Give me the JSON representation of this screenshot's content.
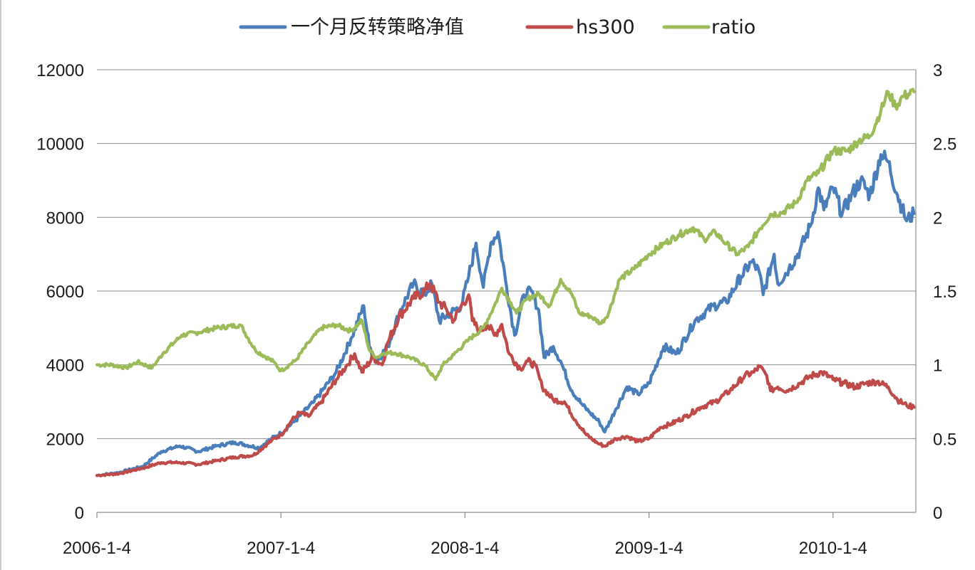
{
  "chart_data": {
    "type": "line",
    "title": "",
    "xlabel": "",
    "ylabel": "",
    "legend_position": "top",
    "grid": "horizontal",
    "x_tick_labels": [
      "2006-1-4",
      "2007-1-4",
      "2008-1-4",
      "2009-1-4",
      "2010-1-4"
    ],
    "y_left": {
      "ylim": [
        0,
        12000
      ],
      "ticks": [
        "0",
        "2000",
        "4000",
        "6000",
        "8000",
        "10000",
        "12000"
      ]
    },
    "y_right": {
      "ylim": [
        0,
        3
      ],
      "ticks": [
        "0",
        "0.5",
        "1",
        "1.5",
        "2",
        "2.5",
        "3"
      ]
    },
    "x_range_years": [
      2006.0,
      2010.45
    ],
    "series": [
      {
        "name": "一个月反转策略净值",
        "axis": "left",
        "color": "#4a7ebb",
        "points": [
          [
            2006.0,
            1000
          ],
          [
            2006.12,
            1080
          ],
          [
            2006.25,
            1250
          ],
          [
            2006.35,
            1650
          ],
          [
            2006.45,
            1800
          ],
          [
            2006.55,
            1650
          ],
          [
            2006.65,
            1800
          ],
          [
            2006.75,
            1900
          ],
          [
            2006.88,
            1750
          ],
          [
            2006.95,
            2000
          ],
          [
            2007.0,
            2150
          ],
          [
            2007.08,
            2500
          ],
          [
            2007.18,
            3000
          ],
          [
            2007.3,
            3800
          ],
          [
            2007.38,
            4700
          ],
          [
            2007.45,
            5600
          ],
          [
            2007.48,
            4500
          ],
          [
            2007.52,
            4100
          ],
          [
            2007.58,
            4500
          ],
          [
            2007.65,
            5500
          ],
          [
            2007.72,
            6200
          ],
          [
            2007.78,
            5900
          ],
          [
            2007.82,
            6200
          ],
          [
            2007.86,
            5200
          ],
          [
            2007.92,
            5400
          ],
          [
            2007.98,
            5600
          ],
          [
            2008.02,
            6400
          ],
          [
            2008.06,
            7300
          ],
          [
            2008.1,
            6100
          ],
          [
            2008.14,
            7300
          ],
          [
            2008.18,
            7600
          ],
          [
            2008.22,
            6300
          ],
          [
            2008.27,
            4800
          ],
          [
            2008.32,
            5900
          ],
          [
            2008.36,
            6000
          ],
          [
            2008.4,
            5500
          ],
          [
            2008.43,
            4200
          ],
          [
            2008.48,
            4500
          ],
          [
            2008.52,
            4100
          ],
          [
            2008.58,
            3300
          ],
          [
            2008.64,
            2900
          ],
          [
            2008.68,
            2700
          ],
          [
            2008.73,
            2450
          ],
          [
            2008.76,
            2180
          ],
          [
            2008.82,
            2800
          ],
          [
            2008.88,
            3400
          ],
          [
            2008.94,
            3200
          ],
          [
            2009.0,
            3500
          ],
          [
            2009.08,
            4500
          ],
          [
            2009.15,
            4300
          ],
          [
            2009.25,
            5200
          ],
          [
            2009.35,
            5600
          ],
          [
            2009.42,
            5700
          ],
          [
            2009.5,
            6400
          ],
          [
            2009.56,
            6800
          ],
          [
            2009.6,
            6500
          ],
          [
            2009.62,
            5900
          ],
          [
            2009.68,
            7000
          ],
          [
            2009.7,
            6200
          ],
          [
            2009.76,
            6600
          ],
          [
            2009.82,
            7100
          ],
          [
            2009.88,
            7800
          ],
          [
            2009.92,
            8800
          ],
          [
            2009.95,
            8200
          ],
          [
            2010.0,
            8800
          ],
          [
            2010.05,
            8100
          ],
          [
            2010.1,
            8600
          ],
          [
            2010.15,
            9000
          ],
          [
            2010.2,
            8600
          ],
          [
            2010.26,
            9700
          ],
          [
            2010.3,
            9500
          ],
          [
            2010.35,
            8600
          ],
          [
            2010.4,
            7900
          ],
          [
            2010.44,
            8100
          ]
        ]
      },
      {
        "name": "hs300",
        "axis": "left",
        "color": "#be4b48",
        "points": [
          [
            2006.0,
            1000
          ],
          [
            2006.12,
            1050
          ],
          [
            2006.25,
            1200
          ],
          [
            2006.35,
            1350
          ],
          [
            2006.45,
            1350
          ],
          [
            2006.55,
            1300
          ],
          [
            2006.65,
            1400
          ],
          [
            2006.75,
            1500
          ],
          [
            2006.85,
            1550
          ],
          [
            2006.95,
            1950
          ],
          [
            2007.0,
            2100
          ],
          [
            2007.06,
            2500
          ],
          [
            2007.1,
            2700
          ],
          [
            2007.15,
            2600
          ],
          [
            2007.22,
            3000
          ],
          [
            2007.3,
            3600
          ],
          [
            2007.36,
            4000
          ],
          [
            2007.4,
            4300
          ],
          [
            2007.44,
            3800
          ],
          [
            2007.5,
            4200
          ],
          [
            2007.55,
            4000
          ],
          [
            2007.58,
            4600
          ],
          [
            2007.64,
            5300
          ],
          [
            2007.72,
            5800
          ],
          [
            2007.78,
            6000
          ],
          [
            2007.81,
            6200
          ],
          [
            2007.86,
            5700
          ],
          [
            2007.9,
            5500
          ],
          [
            2007.94,
            5200
          ],
          [
            2007.98,
            5600
          ],
          [
            2008.02,
            5900
          ],
          [
            2008.04,
            5200
          ],
          [
            2008.08,
            4900
          ],
          [
            2008.12,
            5100
          ],
          [
            2008.16,
            4800
          ],
          [
            2008.2,
            5100
          ],
          [
            2008.24,
            4300
          ],
          [
            2008.3,
            3900
          ],
          [
            2008.34,
            4100
          ],
          [
            2008.38,
            4000
          ],
          [
            2008.42,
            3400
          ],
          [
            2008.48,
            3050
          ],
          [
            2008.54,
            3000
          ],
          [
            2008.6,
            2500
          ],
          [
            2008.66,
            2100
          ],
          [
            2008.72,
            1880
          ],
          [
            2008.76,
            1790
          ],
          [
            2008.82,
            2000
          ],
          [
            2008.88,
            2060
          ],
          [
            2008.94,
            1920
          ],
          [
            2009.0,
            2000
          ],
          [
            2009.06,
            2300
          ],
          [
            2009.12,
            2400
          ],
          [
            2009.2,
            2600
          ],
          [
            2009.28,
            2850
          ],
          [
            2009.36,
            3000
          ],
          [
            2009.44,
            3300
          ],
          [
            2009.52,
            3700
          ],
          [
            2009.57,
            3800
          ],
          [
            2009.6,
            3950
          ],
          [
            2009.64,
            3700
          ],
          [
            2009.66,
            3300
          ],
          [
            2009.7,
            3400
          ],
          [
            2009.75,
            3300
          ],
          [
            2009.82,
            3500
          ],
          [
            2009.88,
            3700
          ],
          [
            2009.94,
            3800
          ],
          [
            2010.0,
            3600
          ],
          [
            2010.06,
            3500
          ],
          [
            2010.12,
            3400
          ],
          [
            2010.18,
            3500
          ],
          [
            2010.24,
            3550
          ],
          [
            2010.3,
            3400
          ],
          [
            2010.35,
            3050
          ],
          [
            2010.4,
            2900
          ],
          [
            2010.44,
            2850
          ]
        ]
      },
      {
        "name": "ratio",
        "axis": "right",
        "color": "#9bbb59",
        "points": [
          [
            2006.0,
            1.0
          ],
          [
            2006.08,
            1.0
          ],
          [
            2006.16,
            0.98
          ],
          [
            2006.22,
            1.02
          ],
          [
            2006.3,
            0.98
          ],
          [
            2006.36,
            1.08
          ],
          [
            2006.46,
            1.2
          ],
          [
            2006.55,
            1.22
          ],
          [
            2006.65,
            1.25
          ],
          [
            2006.78,
            1.27
          ],
          [
            2006.86,
            1.1
          ],
          [
            2006.96,
            1.02
          ],
          [
            2007.0,
            0.96
          ],
          [
            2007.08,
            1.03
          ],
          [
            2007.15,
            1.15
          ],
          [
            2007.22,
            1.25
          ],
          [
            2007.3,
            1.27
          ],
          [
            2007.38,
            1.23
          ],
          [
            2007.44,
            1.3
          ],
          [
            2007.48,
            1.1
          ],
          [
            2007.52,
            1.05
          ],
          [
            2007.56,
            1.08
          ],
          [
            2007.62,
            1.08
          ],
          [
            2007.7,
            1.05
          ],
          [
            2007.78,
            1.0
          ],
          [
            2007.84,
            0.9
          ],
          [
            2007.88,
            1.0
          ],
          [
            2007.94,
            1.07
          ],
          [
            2008.02,
            1.17
          ],
          [
            2008.1,
            1.25
          ],
          [
            2008.16,
            1.4
          ],
          [
            2008.2,
            1.52
          ],
          [
            2008.25,
            1.42
          ],
          [
            2008.28,
            1.35
          ],
          [
            2008.34,
            1.45
          ],
          [
            2008.4,
            1.48
          ],
          [
            2008.46,
            1.4
          ],
          [
            2008.52,
            1.58
          ],
          [
            2008.58,
            1.48
          ],
          [
            2008.62,
            1.35
          ],
          [
            2008.68,
            1.33
          ],
          [
            2008.74,
            1.28
          ],
          [
            2008.78,
            1.35
          ],
          [
            2008.84,
            1.58
          ],
          [
            2008.92,
            1.65
          ],
          [
            2009.0,
            1.75
          ],
          [
            2009.08,
            1.82
          ],
          [
            2009.16,
            1.88
          ],
          [
            2009.24,
            1.93
          ],
          [
            2009.3,
            1.85
          ],
          [
            2009.36,
            1.9
          ],
          [
            2009.42,
            1.82
          ],
          [
            2009.48,
            1.75
          ],
          [
            2009.54,
            1.8
          ],
          [
            2009.6,
            1.92
          ],
          [
            2009.66,
            2.02
          ],
          [
            2009.72,
            2.03
          ],
          [
            2009.8,
            2.1
          ],
          [
            2009.86,
            2.25
          ],
          [
            2009.92,
            2.3
          ],
          [
            2010.0,
            2.45
          ],
          [
            2010.08,
            2.45
          ],
          [
            2010.14,
            2.52
          ],
          [
            2010.2,
            2.55
          ],
          [
            2010.26,
            2.72
          ],
          [
            2010.3,
            2.85
          ],
          [
            2010.34,
            2.75
          ],
          [
            2010.38,
            2.82
          ],
          [
            2010.44,
            2.85
          ]
        ]
      }
    ]
  }
}
